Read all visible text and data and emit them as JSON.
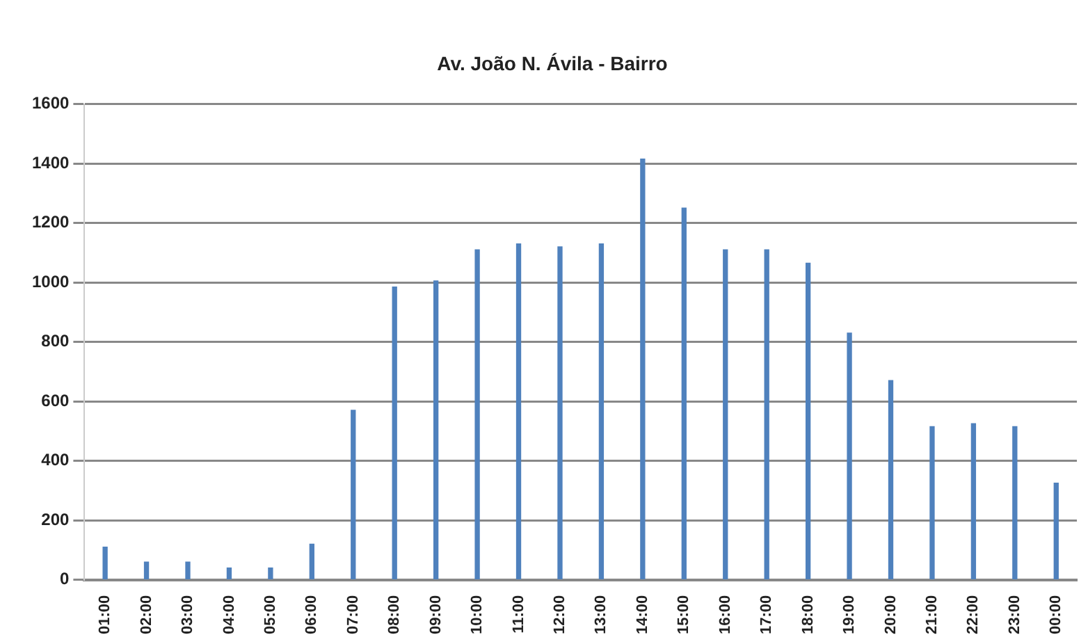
{
  "chart_data": {
    "type": "bar",
    "title": "Av. João N. Ávila - Bairro",
    "categories": [
      "01:00",
      "02:00",
      "03:00",
      "04:00",
      "05:00",
      "06:00",
      "07:00",
      "08:00",
      "09:00",
      "10:00",
      "11:00",
      "12:00",
      "13:00",
      "14:00",
      "15:00",
      "16:00",
      "17:00",
      "18:00",
      "19:00",
      "20:00",
      "21:00",
      "22:00",
      "23:00",
      "00:00"
    ],
    "values": [
      110,
      60,
      60,
      40,
      40,
      120,
      570,
      985,
      1005,
      1110,
      1130,
      1120,
      1130,
      1415,
      1250,
      1110,
      1110,
      1065,
      830,
      670,
      515,
      525,
      515,
      325
    ],
    "color": "#4f81bd",
    "ylim": [
      0,
      1600
    ],
    "yticks": [
      0,
      200,
      400,
      600,
      800,
      1000,
      1200,
      1400,
      1600
    ],
    "grid": "y"
  }
}
